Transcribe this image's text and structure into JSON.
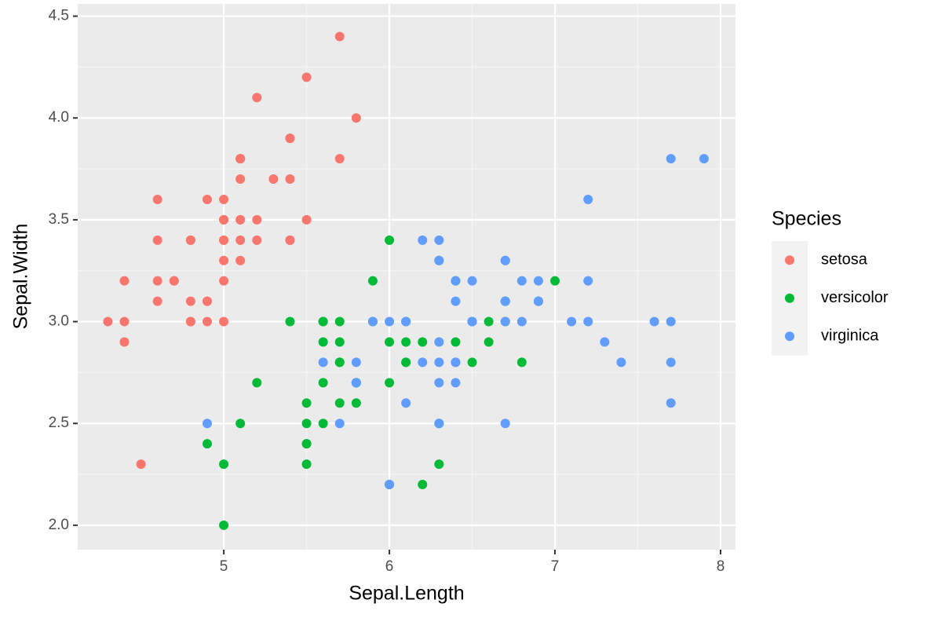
{
  "chart_data": {
    "type": "scatter",
    "x_label": "Sepal.Length",
    "y_label": "Sepal.Width",
    "legend_title": "Species",
    "legend_position": "right",
    "grid": true,
    "xlim": [
      4.118,
      8.09
    ],
    "ylim": [
      1.88,
      4.56
    ],
    "xticks": [
      5,
      6,
      7,
      8
    ],
    "yticks": [
      {
        "value": 2,
        "label": "2.0"
      },
      2.5,
      {
        "value": 3,
        "label": "3.0"
      },
      3.5,
      {
        "value": 4,
        "label": "4.0"
      },
      4.5
    ],
    "series": [
      {
        "name": "setosa",
        "color": "#F8766D",
        "x": [
          5.1,
          4.9,
          4.7,
          4.6,
          5.0,
          5.4,
          4.6,
          5.0,
          4.4,
          4.9,
          5.4,
          4.8,
          4.8,
          4.3,
          5.8,
          5.7,
          5.4,
          5.1,
          5.7,
          5.1,
          5.4,
          5.1,
          4.6,
          5.1,
          4.8,
          5.0,
          5.0,
          5.2,
          5.2,
          4.7,
          4.8,
          5.4,
          5.2,
          5.5,
          4.9,
          5.0,
          5.5,
          4.9,
          4.4,
          5.1,
          5.0,
          4.5,
          4.4,
          5.0,
          5.1,
          4.8,
          5.1,
          4.6,
          5.3,
          5.0
        ],
        "values": [
          3.5,
          3.0,
          3.2,
          3.1,
          3.6,
          3.9,
          3.4,
          3.4,
          2.9,
          3.1,
          3.7,
          3.4,
          3.0,
          3.0,
          4.0,
          4.4,
          3.9,
          3.5,
          3.8,
          3.8,
          3.4,
          3.7,
          3.6,
          3.3,
          3.4,
          3.0,
          3.4,
          3.5,
          3.4,
          3.2,
          3.1,
          3.4,
          4.1,
          4.2,
          3.1,
          3.2,
          3.5,
          3.6,
          3.0,
          3.4,
          3.5,
          2.3,
          3.2,
          3.5,
          3.8,
          3.0,
          3.8,
          3.2,
          3.7,
          3.3
        ]
      },
      {
        "name": "versicolor",
        "color": "#00BA38",
        "x": [
          7.0,
          6.4,
          6.9,
          5.5,
          6.5,
          5.7,
          6.3,
          4.9,
          6.6,
          5.2,
          5.0,
          5.9,
          6.0,
          6.1,
          5.6,
          6.7,
          5.6,
          5.8,
          6.2,
          5.6,
          5.9,
          6.1,
          6.3,
          6.1,
          6.4,
          6.6,
          6.8,
          6.7,
          6.0,
          5.7,
          5.5,
          5.5,
          5.8,
          6.0,
          5.4,
          6.0,
          6.7,
          6.3,
          5.6,
          5.5,
          5.5,
          6.1,
          5.8,
          5.0,
          5.6,
          5.7,
          5.7,
          6.2,
          5.1,
          5.7
        ],
        "values": [
          3.2,
          3.2,
          3.1,
          2.3,
          2.8,
          2.8,
          3.3,
          2.4,
          2.9,
          2.7,
          2.0,
          3.0,
          2.2,
          2.9,
          2.9,
          3.1,
          3.0,
          2.7,
          2.2,
          2.5,
          3.2,
          2.8,
          2.5,
          2.8,
          2.9,
          3.0,
          2.8,
          3.0,
          2.9,
          2.6,
          2.4,
          2.4,
          2.7,
          2.7,
          3.0,
          3.4,
          3.1,
          2.3,
          3.0,
          2.5,
          2.6,
          3.0,
          2.6,
          2.3,
          2.7,
          3.0,
          2.9,
          2.9,
          2.5,
          2.8
        ]
      },
      {
        "name": "virginica",
        "color": "#619CFF",
        "x": [
          6.3,
          5.8,
          7.1,
          6.3,
          6.5,
          7.6,
          4.9,
          7.3,
          6.7,
          7.2,
          6.5,
          6.4,
          6.8,
          5.7,
          5.8,
          6.4,
          6.5,
          7.7,
          7.7,
          6.0,
          6.9,
          5.6,
          7.7,
          6.3,
          6.7,
          7.2,
          6.2,
          6.1,
          6.4,
          7.2,
          7.4,
          7.9,
          6.4,
          6.3,
          6.1,
          7.7,
          6.3,
          6.4,
          6.0,
          6.9,
          6.7,
          6.9,
          5.8,
          6.8,
          6.7,
          6.7,
          6.3,
          6.5,
          6.2,
          5.9
        ],
        "values": [
          3.3,
          2.7,
          3.0,
          2.9,
          3.0,
          3.0,
          2.5,
          2.9,
          2.5,
          3.6,
          3.2,
          2.7,
          3.0,
          2.5,
          2.8,
          3.2,
          3.0,
          3.8,
          2.6,
          2.2,
          3.2,
          2.8,
          2.8,
          2.7,
          3.3,
          3.2,
          2.8,
          3.0,
          2.8,
          3.0,
          2.8,
          3.8,
          2.8,
          2.8,
          2.6,
          3.0,
          3.4,
          3.1,
          3.0,
          3.1,
          3.1,
          3.1,
          2.7,
          3.2,
          3.3,
          3.0,
          2.5,
          3.0,
          3.4,
          3.0
        ]
      }
    ]
  }
}
